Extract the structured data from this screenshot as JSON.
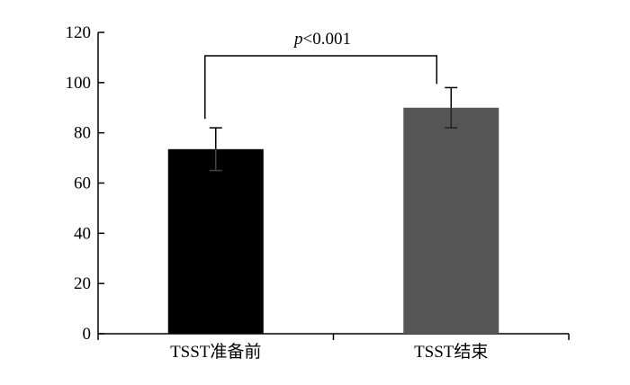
{
  "chart_data": {
    "type": "bar",
    "title": "",
    "xlabel": "",
    "ylabel": "",
    "categories": [
      "TSST准备前",
      "TSST结束"
    ],
    "values": [
      73.5,
      90
    ],
    "errors": [
      8.5,
      8
    ],
    "bar_colors": [
      "#000000",
      "#555555"
    ],
    "ylim": [
      0,
      120
    ],
    "yticks": [
      0,
      20,
      40,
      60,
      80,
      100,
      120
    ],
    "ytick_labels": [
      "0",
      "20",
      "40",
      "60",
      "80",
      "100",
      "120"
    ],
    "grid": false,
    "legend": "none",
    "annotations": [
      {
        "type": "significance-bracket",
        "between": [
          0,
          1
        ],
        "prefix": "p",
        "text": "<0.001"
      }
    ]
  }
}
